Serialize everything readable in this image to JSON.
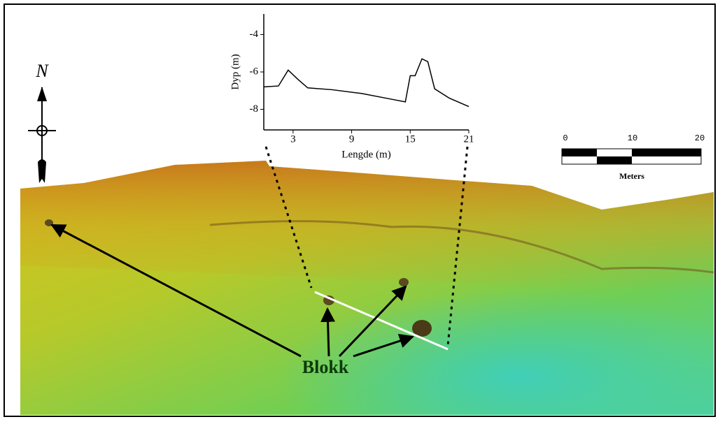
{
  "chart_data": {
    "type": "line",
    "x_label": "Lengde (m)",
    "y_label": "Dyp (m)",
    "x": [
      0,
      1.5,
      2.5,
      3.5,
      4.5,
      7,
      10,
      13,
      14.5,
      15,
      15.5,
      16.2,
      16.8,
      17.5,
      19,
      21
    ],
    "values": [
      -6.8,
      -6.75,
      -5.9,
      -6.4,
      -6.85,
      -6.95,
      -7.15,
      -7.45,
      -7.6,
      -6.2,
      -6.2,
      -5.3,
      -5.45,
      -6.9,
      -7.4,
      -7.85
    ],
    "color": "#000000",
    "xlim": [
      0,
      21
    ],
    "xticks": [
      3,
      9,
      15,
      21
    ],
    "ylim": [
      -9.1,
      -2.9
    ],
    "yticks": [
      -4,
      -6,
      -8
    ]
  },
  "map": {
    "north_label": "N",
    "annotation": "Blokk",
    "scale_bar": {
      "ticks": [
        0,
        10,
        20
      ],
      "unit": "Meters"
    }
  }
}
